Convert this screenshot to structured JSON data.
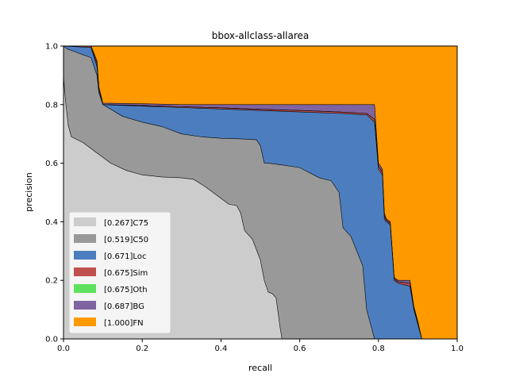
{
  "chart_data": {
    "type": "area",
    "title": "bbox-allclass-allarea",
    "xlabel": "recall",
    "ylabel": "precision",
    "xlim": [
      0,
      1
    ],
    "ylim": [
      0,
      1
    ],
    "xticks": [
      "0.0",
      "0.2",
      "0.4",
      "0.6",
      "0.8",
      "1.0"
    ],
    "yticks": [
      "0.0",
      "0.2",
      "0.4",
      "0.6",
      "0.8",
      "1.0"
    ],
    "legend_position": "lower-left",
    "series": [
      {
        "name": "[0.267]C75",
        "color": "#cccccc",
        "points": [
          [
            0,
            0.9
          ],
          [
            0.002,
            0.86
          ],
          [
            0.006,
            0.8
          ],
          [
            0.012,
            0.73
          ],
          [
            0.02,
            0.69
          ],
          [
            0.05,
            0.67
          ],
          [
            0.08,
            0.64
          ],
          [
            0.12,
            0.6
          ],
          [
            0.16,
            0.575
          ],
          [
            0.2,
            0.56
          ],
          [
            0.25,
            0.553
          ],
          [
            0.3,
            0.55
          ],
          [
            0.33,
            0.545
          ],
          [
            0.36,
            0.52
          ],
          [
            0.4,
            0.48
          ],
          [
            0.42,
            0.46
          ],
          [
            0.44,
            0.455
          ],
          [
            0.45,
            0.43
          ],
          [
            0.46,
            0.37
          ],
          [
            0.48,
            0.34
          ],
          [
            0.5,
            0.27
          ],
          [
            0.51,
            0.2
          ],
          [
            0.52,
            0.16
          ],
          [
            0.53,
            0.155
          ],
          [
            0.54,
            0.14
          ],
          [
            0.55,
            0.04
          ],
          [
            0.555,
            0.0
          ]
        ]
      },
      {
        "name": "[0.519]C50",
        "color": "#999999",
        "points": [
          [
            0,
            1.0
          ],
          [
            0.01,
            0.99
          ],
          [
            0.03,
            0.98
          ],
          [
            0.05,
            0.97
          ],
          [
            0.07,
            0.96
          ],
          [
            0.085,
            0.9
          ],
          [
            0.09,
            0.84
          ],
          [
            0.1,
            0.8
          ],
          [
            0.15,
            0.76
          ],
          [
            0.2,
            0.74
          ],
          [
            0.25,
            0.725
          ],
          [
            0.3,
            0.7
          ],
          [
            0.35,
            0.69
          ],
          [
            0.4,
            0.685
          ],
          [
            0.45,
            0.683
          ],
          [
            0.49,
            0.68
          ],
          [
            0.5,
            0.66
          ],
          [
            0.51,
            0.6
          ],
          [
            0.52,
            0.6
          ],
          [
            0.55,
            0.595
          ],
          [
            0.6,
            0.585
          ],
          [
            0.65,
            0.55
          ],
          [
            0.68,
            0.54
          ],
          [
            0.7,
            0.5
          ],
          [
            0.71,
            0.38
          ],
          [
            0.73,
            0.35
          ],
          [
            0.76,
            0.25
          ],
          [
            0.77,
            0.1
          ],
          [
            0.78,
            0.05
          ],
          [
            0.79,
            0.0
          ]
        ]
      },
      {
        "name": "[0.671]Loc",
        "color": "#4c7ebf",
        "points": [
          [
            0,
            1.0
          ],
          [
            0.07,
            0.995
          ],
          [
            0.085,
            0.93
          ],
          [
            0.09,
            0.85
          ],
          [
            0.1,
            0.8
          ],
          [
            0.2,
            0.795
          ],
          [
            0.3,
            0.79
          ],
          [
            0.4,
            0.785
          ],
          [
            0.5,
            0.78
          ],
          [
            0.6,
            0.775
          ],
          [
            0.7,
            0.77
          ],
          [
            0.77,
            0.765
          ],
          [
            0.79,
            0.74
          ],
          [
            0.8,
            0.58
          ],
          [
            0.81,
            0.56
          ],
          [
            0.815,
            0.41
          ],
          [
            0.82,
            0.4
          ],
          [
            0.83,
            0.39
          ],
          [
            0.84,
            0.2
          ],
          [
            0.85,
            0.19
          ],
          [
            0.88,
            0.18
          ],
          [
            0.89,
            0.1
          ],
          [
            0.9,
            0.05
          ],
          [
            0.91,
            0.0
          ]
        ]
      },
      {
        "name": "[0.675]Sim",
        "color": "#c0504d",
        "points": [
          [
            0,
            1.0
          ],
          [
            0.07,
            1.0
          ],
          [
            0.085,
            0.94
          ],
          [
            0.09,
            0.85
          ],
          [
            0.1,
            0.8
          ],
          [
            0.2,
            0.797
          ],
          [
            0.3,
            0.793
          ],
          [
            0.4,
            0.789
          ],
          [
            0.5,
            0.784
          ],
          [
            0.6,
            0.78
          ],
          [
            0.7,
            0.775
          ],
          [
            0.77,
            0.77
          ],
          [
            0.79,
            0.75
          ],
          [
            0.8,
            0.59
          ],
          [
            0.81,
            0.57
          ],
          [
            0.815,
            0.42
          ],
          [
            0.82,
            0.405
          ],
          [
            0.83,
            0.395
          ],
          [
            0.84,
            0.205
          ],
          [
            0.85,
            0.195
          ],
          [
            0.88,
            0.19
          ],
          [
            0.89,
            0.105
          ],
          [
            0.9,
            0.055
          ],
          [
            0.91,
            0.0
          ]
        ]
      },
      {
        "name": "[0.675]Oth",
        "color": "#5ee15e",
        "points": [
          [
            0,
            1.0
          ],
          [
            0.07,
            1.0
          ],
          [
            0.085,
            0.94
          ],
          [
            0.09,
            0.85
          ],
          [
            0.1,
            0.8
          ],
          [
            0.2,
            0.797
          ],
          [
            0.3,
            0.793
          ],
          [
            0.4,
            0.789
          ],
          [
            0.5,
            0.784
          ],
          [
            0.6,
            0.78
          ],
          [
            0.7,
            0.775
          ],
          [
            0.77,
            0.77
          ],
          [
            0.79,
            0.75
          ],
          [
            0.8,
            0.59
          ],
          [
            0.81,
            0.57
          ],
          [
            0.815,
            0.42
          ],
          [
            0.82,
            0.405
          ],
          [
            0.83,
            0.395
          ],
          [
            0.84,
            0.205
          ],
          [
            0.85,
            0.195
          ],
          [
            0.88,
            0.19
          ],
          [
            0.89,
            0.105
          ],
          [
            0.9,
            0.055
          ],
          [
            0.91,
            0.0
          ]
        ]
      },
      {
        "name": "[0.687]BG",
        "color": "#8064a2",
        "points": [
          [
            0,
            1.0
          ],
          [
            0.07,
            1.0
          ],
          [
            0.085,
            0.95
          ],
          [
            0.09,
            0.86
          ],
          [
            0.1,
            0.805
          ],
          [
            0.2,
            0.803
          ],
          [
            0.3,
            0.8
          ],
          [
            0.4,
            0.8
          ],
          [
            0.5,
            0.8
          ],
          [
            0.6,
            0.8
          ],
          [
            0.7,
            0.8
          ],
          [
            0.79,
            0.8
          ],
          [
            0.8,
            0.6
          ],
          [
            0.81,
            0.58
          ],
          [
            0.815,
            0.43
          ],
          [
            0.82,
            0.41
          ],
          [
            0.83,
            0.4
          ],
          [
            0.84,
            0.21
          ],
          [
            0.85,
            0.2
          ],
          [
            0.88,
            0.2
          ],
          [
            0.89,
            0.11
          ],
          [
            0.9,
            0.06
          ],
          [
            0.91,
            0.0
          ]
        ]
      },
      {
        "name": "[1.000]FN",
        "color": "#ff9900",
        "points": [
          [
            0,
            1.0
          ],
          [
            1.0,
            1.0
          ],
          [
            1.0,
            0.0
          ]
        ]
      }
    ]
  }
}
